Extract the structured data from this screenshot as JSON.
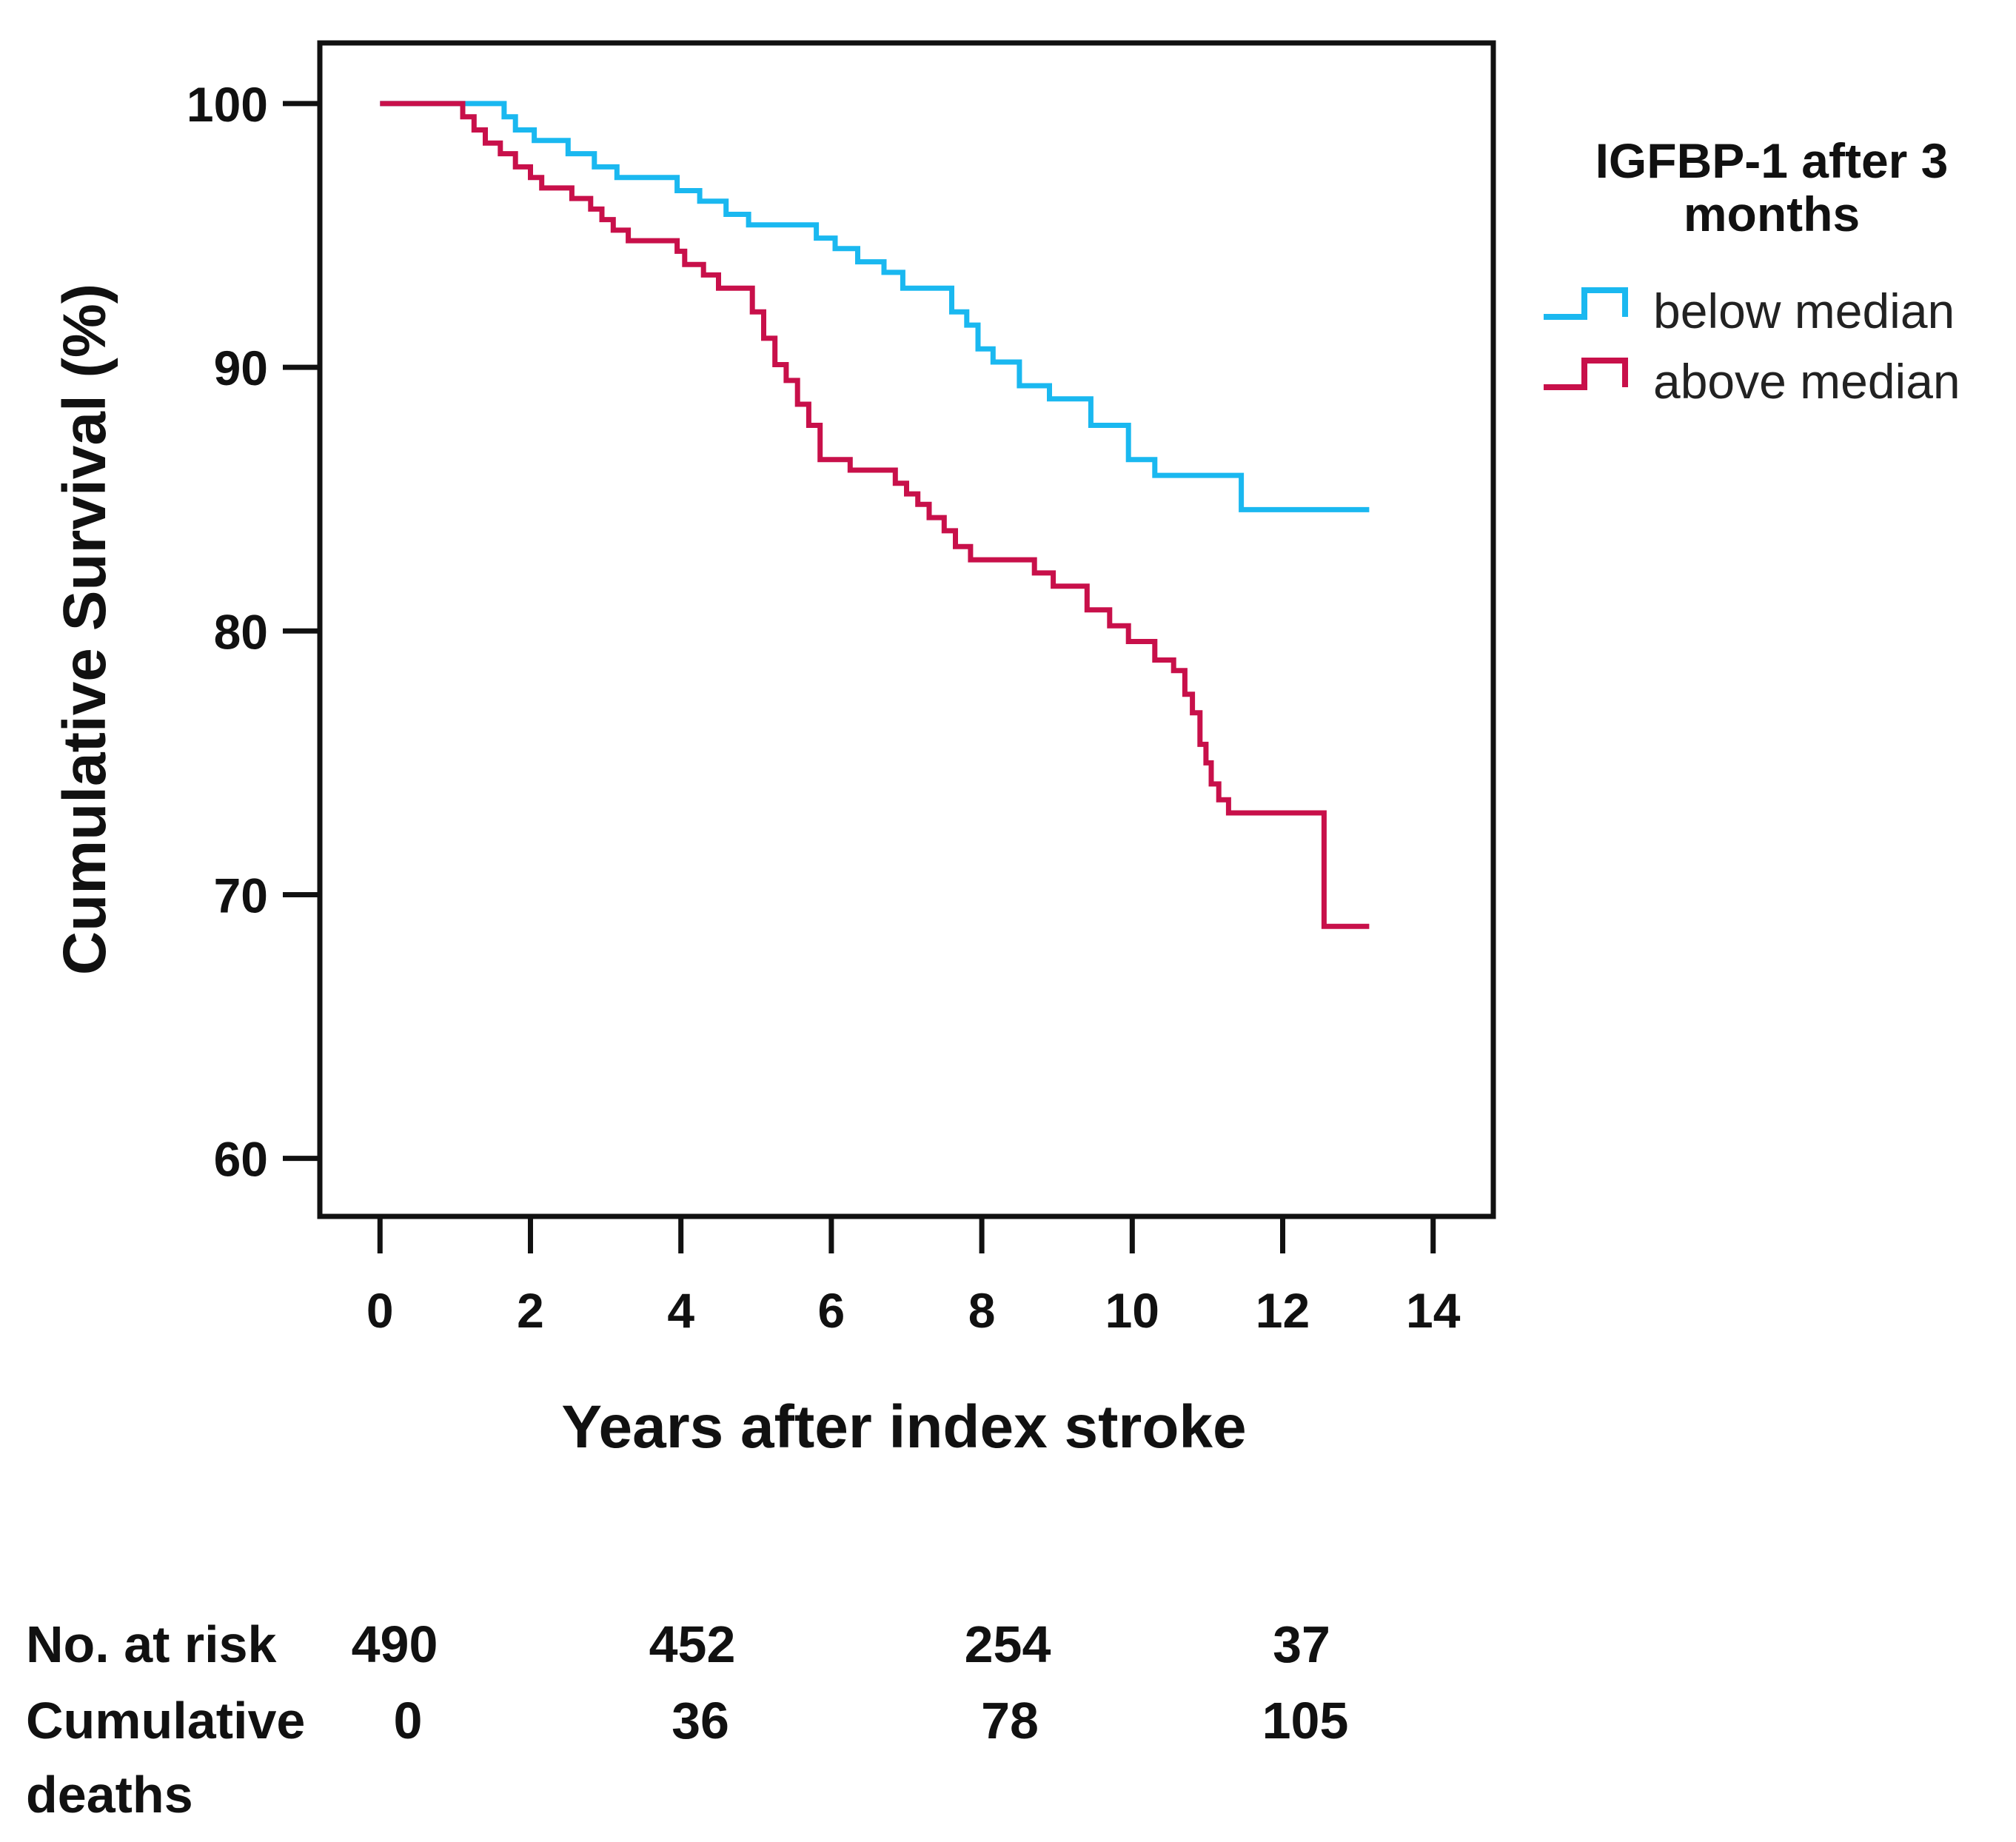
{
  "chart_data": {
    "type": "line",
    "step": true,
    "title": "",
    "xlabel": "Years after index stroke",
    "ylabel": "Cumulative Survival (%)",
    "xlim": [
      -0.8,
      14.8
    ],
    "ylim": [
      57.8,
      102.3
    ],
    "xticks": [
      0,
      2,
      4,
      6,
      8,
      10,
      12,
      14
    ],
    "xtick_labels": [
      "0",
      "2",
      "4",
      "6",
      "8",
      "10",
      "12",
      "14"
    ],
    "yticks": [
      60,
      70,
      80,
      90,
      100
    ],
    "ytick_labels": [
      "60",
      "70",
      "80",
      "90",
      "100"
    ],
    "legend": {
      "title_lines": [
        "IGFBP-1 after 3",
        "months"
      ],
      "position": "right"
    },
    "series": [
      {
        "name": "below median",
        "color": "#1AB8F0",
        "x": [
          0,
          1.65,
          1.8,
          2.05,
          2.5,
          2.85,
          3.15,
          3.95,
          4.25,
          4.6,
          4.9,
          5.8,
          6.05,
          6.35,
          6.7,
          6.95,
          7.6,
          7.8,
          7.95,
          8.15,
          8.5,
          8.9,
          9.45,
          9.95,
          10.3,
          11.45,
          13.15
        ],
        "y": [
          100,
          99.5,
          99.0,
          98.6,
          98.1,
          97.6,
          97.2,
          96.7,
          96.3,
          95.8,
          95.4,
          94.9,
          94.5,
          94.0,
          93.6,
          93.0,
          92.1,
          91.6,
          90.7,
          90.2,
          89.3,
          88.8,
          87.8,
          86.5,
          85.9,
          84.6,
          84.6
        ]
      },
      {
        "name": "above median",
        "color": "#C8104A",
        "x": [
          0,
          1.1,
          1.25,
          1.4,
          1.6,
          1.8,
          2.0,
          2.15,
          2.55,
          2.8,
          2.95,
          3.1,
          3.3,
          3.95,
          4.05,
          4.3,
          4.5,
          4.95,
          5.1,
          5.25,
          5.4,
          5.55,
          5.7,
          5.85,
          6.25,
          6.85,
          7.0,
          7.15,
          7.3,
          7.5,
          7.65,
          7.85,
          8.7,
          8.95,
          9.4,
          9.7,
          9.95,
          10.3,
          10.55,
          10.7,
          10.8,
          10.9,
          10.98,
          11.05,
          11.15,
          11.28,
          12.55,
          13.15
        ],
        "y": [
          100,
          99.5,
          99.0,
          98.5,
          98.1,
          97.6,
          97.2,
          96.8,
          96.4,
          96.0,
          95.6,
          95.2,
          94.8,
          94.4,
          93.9,
          93.5,
          93.0,
          92.1,
          91.1,
          90.1,
          89.5,
          88.6,
          87.8,
          86.5,
          86.1,
          85.6,
          85.2,
          84.8,
          84.3,
          83.8,
          83.2,
          82.7,
          82.2,
          81.7,
          80.8,
          80.2,
          79.6,
          78.9,
          78.5,
          77.6,
          76.9,
          75.7,
          75.0,
          74.2,
          73.6,
          73.1,
          68.8,
          68.8
        ]
      }
    ]
  },
  "risk_table": {
    "rows": [
      {
        "label": "No. at risk",
        "values": [
          "490",
          "452",
          "254",
          "37"
        ]
      },
      {
        "label_lines": [
          "Cumulative",
          "deaths"
        ],
        "values": [
          "0",
          "36",
          "78",
          "105"
        ]
      }
    ]
  }
}
